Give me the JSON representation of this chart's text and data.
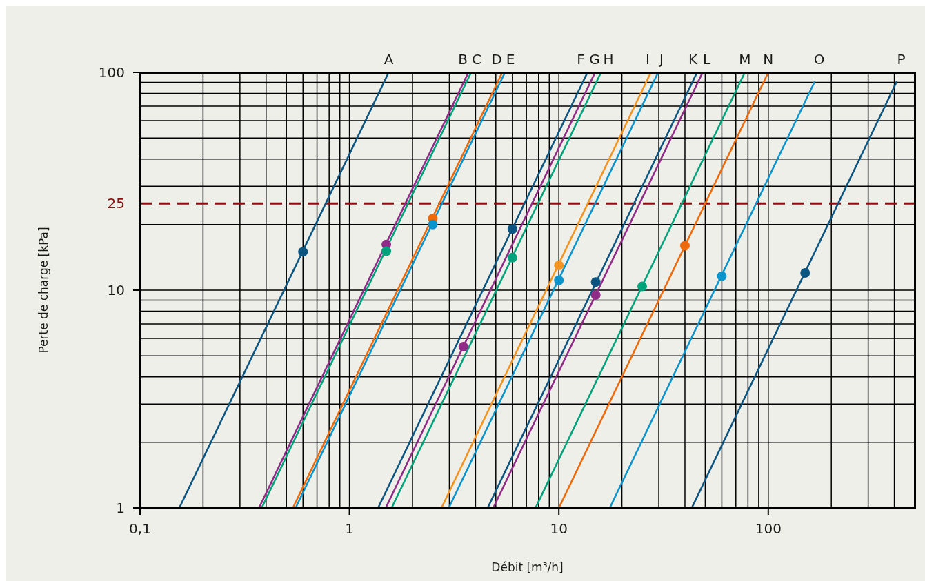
{
  "chart_data": {
    "type": "line",
    "xlabel": "Débit [m³/h]",
    "ylabel": "Perte de charge [kPa]",
    "log": "xy",
    "xlim": [
      0.1,
      500
    ],
    "ylim": [
      1,
      100
    ],
    "xticks": [
      {
        "value": 0.1,
        "label": "0,1"
      },
      {
        "value": 0.2,
        "label": null
      },
      {
        "value": 0.3,
        "label": null
      },
      {
        "value": 0.4,
        "label": null
      },
      {
        "value": 0.5,
        "label": null
      },
      {
        "value": 0.6,
        "label": null
      },
      {
        "value": 0.7,
        "label": null
      },
      {
        "value": 0.8,
        "label": null
      },
      {
        "value": 0.9,
        "label": null
      },
      1,
      {
        "value": 2,
        "label": null
      },
      {
        "value": 3,
        "label": null
      },
      {
        "value": 4,
        "label": null
      },
      {
        "value": 5,
        "label": null
      },
      {
        "value": 6,
        "label": null
      },
      {
        "value": 7,
        "label": null
      },
      {
        "value": 8,
        "label": null
      },
      {
        "value": 9,
        "label": null
      },
      10,
      {
        "value": 20,
        "label": null
      },
      {
        "value": 30,
        "label": null
      },
      {
        "value": 40,
        "label": null
      },
      {
        "value": 50,
        "label": null
      },
      {
        "value": 60,
        "label": null
      },
      {
        "value": 70,
        "label": null
      },
      {
        "value": 80,
        "label": null
      },
      {
        "value": 90,
        "label": null
      },
      100,
      {
        "value": 200,
        "label": null
      },
      {
        "value": 300,
        "label": null
      },
      {
        "value": 400,
        "label": null
      }
    ],
    "yticks": [
      1,
      {
        "value": 2,
        "label": null
      },
      {
        "value": 3,
        "label": null
      },
      {
        "value": 4,
        "label": null
      },
      {
        "value": 5,
        "label": null
      },
      {
        "value": 6,
        "label": null
      },
      {
        "value": 7,
        "label": null
      },
      {
        "value": 8,
        "label": null
      },
      {
        "value": 9,
        "label": null
      },
      10,
      {
        "value": 20,
        "label": null
      },
      {
        "value": 30,
        "label": null
      },
      {
        "value": 40,
        "label": null
      },
      {
        "value": 50,
        "label": null
      },
      {
        "value": 60,
        "label": null
      },
      {
        "value": 70,
        "label": null
      },
      {
        "value": 80,
        "label": null
      },
      {
        "value": 90,
        "label": null
      },
      100
    ],
    "grid": true,
    "marker": "none",
    "line_style": "solid",
    "ref_lines": [
      {
        "axis": "y",
        "value": 25,
        "label": "25",
        "color": "#8b1010",
        "line_style": "dashed"
      }
    ],
    "series": [
      {
        "name": "A",
        "color": "#0c5581",
        "x": [
          0.154,
          1.54
        ],
        "values": [
          1,
          100
        ]
      },
      {
        "name": "B",
        "color": "#912b88",
        "x": [
          0.37,
          3.7
        ],
        "values": [
          1,
          100
        ]
      },
      {
        "name": "C",
        "color": "#00a27b",
        "x": [
          0.381,
          3.81
        ],
        "values": [
          1,
          100
        ]
      },
      {
        "name": "D",
        "color": "#ec6a0b",
        "x": [
          0.537,
          5.37
        ],
        "values": [
          1,
          100
        ]
      },
      {
        "name": "E",
        "color": "#0b93cb",
        "x": [
          0.553,
          5.53
        ],
        "values": [
          1,
          100
        ]
      },
      {
        "name": "F",
        "color": "#0c5581",
        "x": [
          1.37,
          13.7
        ],
        "values": [
          1,
          100
        ]
      },
      {
        "name": "G",
        "color": "#912b88",
        "x": [
          1.49,
          14.9
        ],
        "values": [
          1,
          100
        ]
      },
      {
        "name": "H",
        "color": "#00a27b",
        "x": [
          1.59,
          15.9
        ],
        "values": [
          1,
          100
        ]
      },
      {
        "name": "I",
        "color": "#f39320",
        "x": [
          2.75,
          27.5
        ],
        "values": [
          1,
          100
        ]
      },
      {
        "name": "J",
        "color": "#0b93cb",
        "x": [
          2.98,
          29.8
        ],
        "values": [
          1,
          100
        ]
      },
      {
        "name": "K",
        "color": "#0c5581",
        "x": [
          4.57,
          45.7
        ],
        "values": [
          1,
          100
        ]
      },
      {
        "name": "L",
        "color": "#912b88",
        "x": [
          4.86,
          48.6
        ],
        "values": [
          1,
          100
        ]
      },
      {
        "name": "M",
        "color": "#00a27b",
        "x": [
          7.73,
          77.3
        ],
        "values": [
          1,
          100
        ]
      },
      {
        "name": "N",
        "color": "#ec6a0b",
        "x": [
          10,
          100
        ],
        "values": [
          1,
          100
        ]
      },
      {
        "name": "O",
        "color": "#0b93cb",
        "x": [
          17.5,
          166
        ],
        "values": [
          1,
          90
        ]
      },
      {
        "name": "P",
        "color": "#0c5581",
        "x": [
          43.1,
          409
        ],
        "values": [
          1,
          90
        ]
      },
      {
        "type": "scatter",
        "marker": "circle",
        "x": [
          0.6,
          1.5,
          1.5,
          2.5,
          2.5,
          6,
          3.5,
          6,
          10,
          10,
          15,
          15,
          25,
          40,
          60,
          150
        ],
        "values": [
          15,
          16.2,
          15.1,
          21.3,
          20,
          19.1,
          5.5,
          14.1,
          13,
          11.1,
          10.9,
          9.5,
          10.4,
          16,
          11.6,
          12
        ],
        "colors": [
          "#0c5581",
          "#912b88",
          "#00a27b",
          "#ec6a0b",
          "#0b93cb",
          "#0c5581",
          "#912b88",
          "#00a27b",
          "#f39320",
          "#0b93cb",
          "#0c5581",
          "#912b88",
          "#00a27b",
          "#ec6a0b",
          "#0b93cb",
          "#0c5581"
        ]
      }
    ]
  }
}
